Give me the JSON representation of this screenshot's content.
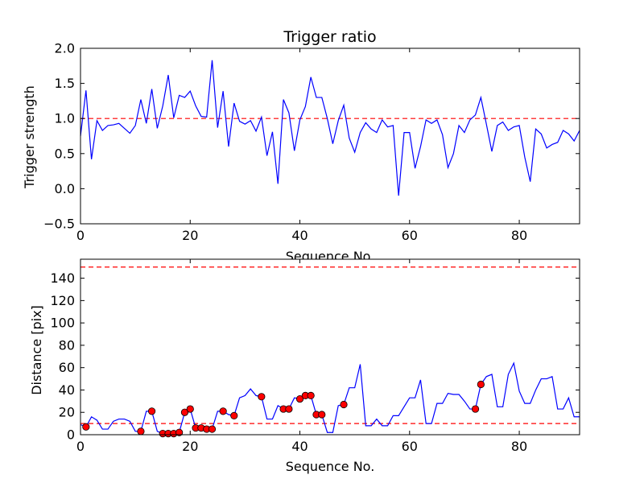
{
  "chart_data": [
    {
      "type": "line",
      "title": "Trigger ratio",
      "xlabel": "Sequence No.",
      "ylabel": "Trigger strength",
      "xlim": [
        0,
        91
      ],
      "ylim": [
        -0.5,
        2.0
      ],
      "xticks": [
        "0",
        "20",
        "40",
        "60",
        "80"
      ],
      "yticks": [
        "−0.5",
        "0.0",
        "0.5",
        "1.0",
        "1.5",
        "2.0"
      ],
      "line_color": "#0000ff",
      "threshold": 1.0,
      "threshold_color": "#ff0000",
      "series": [
        {
          "name": "trigger strength",
          "x": [
            0,
            1,
            2,
            3,
            4,
            5,
            6,
            7,
            8,
            9,
            10,
            11,
            12,
            13,
            14,
            15,
            16,
            17,
            18,
            19,
            20,
            21,
            22,
            23,
            24,
            25,
            26,
            27,
            28,
            29,
            30,
            31,
            32,
            33,
            34,
            35,
            36,
            37,
            38,
            39,
            40,
            41,
            42,
            43,
            44,
            45,
            46,
            47,
            48,
            49,
            50,
            51,
            52,
            53,
            54,
            55,
            56,
            57,
            58,
            59,
            60,
            61,
            62,
            63,
            64,
            65,
            66,
            67,
            68,
            69,
            70,
            71,
            72,
            73,
            74,
            75,
            76,
            77,
            78,
            79,
            80,
            81,
            82,
            83,
            84,
            85,
            86,
            87,
            88,
            89,
            90,
            91
          ],
          "values": [
            0.75,
            1.4,
            0.42,
            0.97,
            0.83,
            0.9,
            0.91,
            0.93,
            0.86,
            0.79,
            0.9,
            1.27,
            0.93,
            1.42,
            0.86,
            1.18,
            1.62,
            1.01,
            1.33,
            1.3,
            1.39,
            1.18,
            1.03,
            1.02,
            1.83,
            0.87,
            1.39,
            0.6,
            1.22,
            0.96,
            0.92,
            0.97,
            0.82,
            1.02,
            0.47,
            0.81,
            0.07,
            1.27,
            1.08,
            0.54,
            0.98,
            1.17,
            1.59,
            1.3,
            1.3,
            1.0,
            0.64,
            0.97,
            1.19,
            0.72,
            0.52,
            0.8,
            0.94,
            0.85,
            0.8,
            0.98,
            0.88,
            0.9,
            -0.1,
            0.8,
            0.8,
            0.29,
            0.6,
            0.98,
            0.93,
            0.98,
            0.77,
            0.3,
            0.5,
            0.9,
            0.8,
            0.98,
            1.05,
            1.3,
            0.92,
            0.53,
            0.9,
            0.95,
            0.83,
            0.88,
            0.9,
            0.45,
            0.1,
            0.85,
            0.78,
            0.58,
            0.63,
            0.66,
            0.83,
            0.78,
            0.68,
            0.83
          ]
        }
      ]
    },
    {
      "type": "line",
      "title": "",
      "xlabel": "Sequence No.",
      "ylabel": "Distance [pix]",
      "xlim": [
        0,
        91
      ],
      "ylim": [
        0,
        157
      ],
      "xticks": [
        "0",
        "20",
        "40",
        "60",
        "80"
      ],
      "yticks": [
        "0",
        "20",
        "40",
        "60",
        "80",
        "100",
        "120",
        "140"
      ],
      "line_color": "#0000ff",
      "marker_color": "#ff0000",
      "thresholds": [
        10,
        150
      ],
      "threshold_color": "#ff0000",
      "series": [
        {
          "name": "distance",
          "x": [
            0,
            1,
            2,
            3,
            4,
            5,
            6,
            7,
            8,
            9,
            10,
            11,
            12,
            13,
            14,
            15,
            16,
            17,
            18,
            19,
            20,
            21,
            22,
            23,
            24,
            25,
            26,
            27,
            28,
            29,
            30,
            31,
            32,
            33,
            34,
            35,
            36,
            37,
            38,
            39,
            40,
            41,
            42,
            43,
            44,
            45,
            46,
            47,
            48,
            49,
            50,
            51,
            52,
            53,
            54,
            55,
            56,
            57,
            58,
            59,
            60,
            61,
            62,
            63,
            64,
            65,
            66,
            67,
            68,
            69,
            70,
            71,
            72,
            73,
            74,
            75,
            76,
            77,
            78,
            79,
            80,
            81,
            82,
            83,
            84,
            85,
            86,
            87,
            88,
            89,
            90,
            91
          ],
          "values": [
            9,
            7,
            16,
            13,
            5,
            5,
            12,
            14,
            14,
            12,
            3,
            3,
            21,
            21,
            3,
            1,
            1,
            1,
            2,
            20,
            23,
            6,
            6,
            5,
            5,
            21,
            21,
            18,
            17,
            33,
            35,
            41,
            35,
            34,
            14,
            14,
            26,
            23,
            23,
            33,
            32,
            35,
            35,
            18,
            18,
            2,
            2,
            26,
            27,
            42,
            42,
            63,
            8,
            8,
            14,
            8,
            8,
            17,
            17,
            25,
            33,
            33,
            49,
            10,
            10,
            28,
            28,
            37,
            36,
            36,
            30,
            23,
            23,
            45,
            52,
            54,
            25,
            25,
            54,
            64,
            39,
            28,
            28,
            40,
            50,
            50,
            52,
            23,
            23,
            33,
            16,
            16
          ]
        },
        {
          "name": "triggered points",
          "x": [
            1,
            11,
            13,
            15,
            16,
            17,
            18,
            19,
            20,
            21,
            22,
            23,
            24,
            26,
            28,
            33,
            37,
            38,
            40,
            41,
            42,
            43,
            44,
            48,
            72,
            73
          ],
          "values": [
            7,
            3,
            21,
            1,
            1,
            1,
            2,
            20,
            23,
            6,
            6,
            5,
            5,
            21,
            17,
            34,
            23,
            23,
            32,
            35,
            35,
            18,
            18,
            27,
            23,
            45
          ]
        }
      ]
    }
  ]
}
